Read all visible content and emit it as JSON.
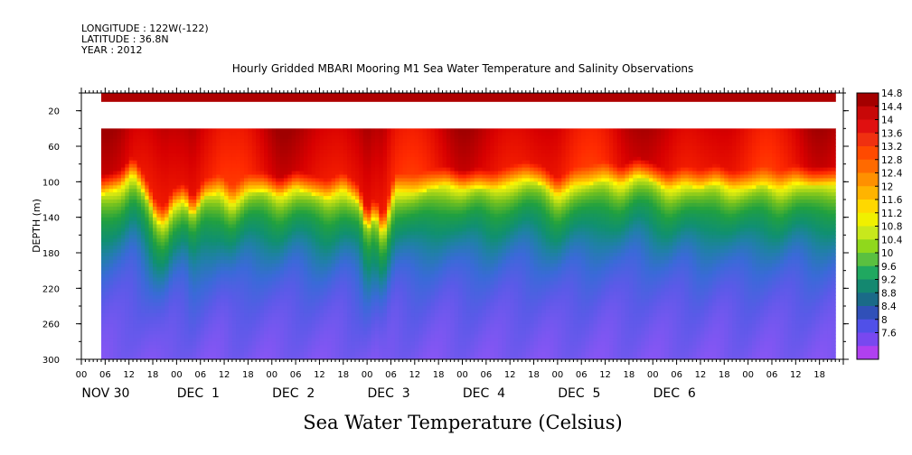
{
  "header": {
    "longitude": "LONGITUDE : 122W(-122)",
    "latitude": "LATITUDE : 36.8N",
    "year": "YEAR : 2012"
  },
  "chart_data": {
    "type": "heatmap",
    "title": "Hourly Gridded MBARI Mooring M1 Sea Water Temperature and Salinity Observations",
    "bottom_title": "Sea Water Temperature (Celsius)",
    "ylabel": "DEPTH (m)",
    "ylim": [
      0,
      300
    ],
    "y_inverted": true,
    "y_ticks": [
      20,
      60,
      100,
      140,
      180,
      220,
      260,
      300
    ],
    "x_hour_ticks": [
      "00",
      "06",
      "12",
      "18",
      "00",
      "06",
      "12",
      "18",
      "00",
      "06",
      "12",
      "18",
      "00",
      "06",
      "12",
      "18",
      "00",
      "06",
      "12",
      "18",
      "00",
      "06",
      "12",
      "18",
      "00",
      "06",
      "12",
      "18",
      "00",
      "06",
      "12",
      "18"
    ],
    "x_day_labels": [
      "NOV 30",
      "DEC  1",
      "DEC  2",
      "DEC  3",
      "DEC  4",
      "DEC  5",
      "DEC  6"
    ],
    "hours_total": 192,
    "data_start_hour": 5,
    "data_end_hour": 190,
    "surface_layer_depths": [
      0,
      10
    ],
    "missing_depths": [
      10,
      40
    ],
    "colorbar_levels": [
      14.8,
      14.4,
      14,
      13.6,
      13.2,
      12.8,
      12.4,
      12,
      11.6,
      11.2,
      10.8,
      10.4,
      10,
      9.6,
      9.2,
      8.8,
      8.4,
      8,
      7.6
    ],
    "colorbar_colors": [
      "#a40000",
      "#c80808",
      "#e01010",
      "#f03010",
      "#ff4a00",
      "#ff6a00",
      "#ff9000",
      "#ffb400",
      "#ffd800",
      "#f0f000",
      "#c8e81c",
      "#90d81c",
      "#5ac040",
      "#20a860",
      "#148870",
      "#1a6a88",
      "#3050b8",
      "#5050e8",
      "#7848f0",
      "#b040f0"
    ],
    "color_scale_stops": [
      {
        "value": 7.6,
        "color": "#cc44ff"
      },
      {
        "value": 8.2,
        "color": "#8a55f5"
      },
      {
        "value": 8.8,
        "color": "#5a5ae8"
      },
      {
        "value": 9.2,
        "color": "#3a6ad8"
      },
      {
        "value": 9.6,
        "color": "#2080a8"
      },
      {
        "value": 10.0,
        "color": "#109070"
      },
      {
        "value": 10.6,
        "color": "#20a040"
      },
      {
        "value": 11.2,
        "color": "#70c020"
      },
      {
        "value": 11.8,
        "color": "#d8e810"
      },
      {
        "value": 12.2,
        "color": "#ffff00"
      },
      {
        "value": 12.6,
        "color": "#ffc000"
      },
      {
        "value": 13.2,
        "color": "#ff7000"
      },
      {
        "value": 13.8,
        "color": "#ff2a00"
      },
      {
        "value": 14.4,
        "color": "#d80000"
      },
      {
        "value": 14.8,
        "color": "#a00000"
      }
    ],
    "thermocline_depth_by_hour": [
      [
        5,
        115
      ],
      [
        10,
        108
      ],
      [
        13,
        92
      ],
      [
        16,
        115
      ],
      [
        19,
        145
      ],
      [
        21,
        150
      ],
      [
        23,
        130
      ],
      [
        26,
        122
      ],
      [
        28,
        140
      ],
      [
        31,
        118
      ],
      [
        35,
        113
      ],
      [
        38,
        128
      ],
      [
        42,
        112
      ],
      [
        46,
        110
      ],
      [
        50,
        118
      ],
      [
        54,
        108
      ],
      [
        58,
        114
      ],
      [
        62,
        120
      ],
      [
        66,
        110
      ],
      [
        70,
        125
      ],
      [
        72,
        155
      ],
      [
        74,
        138
      ],
      [
        76,
        162
      ],
      [
        79,
        112
      ],
      [
        84,
        114
      ],
      [
        88,
        108
      ],
      [
        92,
        104
      ],
      [
        96,
        110
      ],
      [
        100,
        106
      ],
      [
        104,
        110
      ],
      [
        108,
        104
      ],
      [
        112,
        98
      ],
      [
        116,
        103
      ],
      [
        120,
        118
      ],
      [
        124,
        106
      ],
      [
        128,
        104
      ],
      [
        132,
        98
      ],
      [
        136,
        105
      ],
      [
        140,
        94
      ],
      [
        143,
        98
      ],
      [
        148,
        110
      ],
      [
        152,
        104
      ],
      [
        156,
        108
      ],
      [
        160,
        102
      ],
      [
        164,
        110
      ],
      [
        168,
        108
      ],
      [
        172,
        104
      ],
      [
        176,
        110
      ],
      [
        180,
        102
      ],
      [
        184,
        106
      ],
      [
        190,
        104
      ]
    ]
  }
}
